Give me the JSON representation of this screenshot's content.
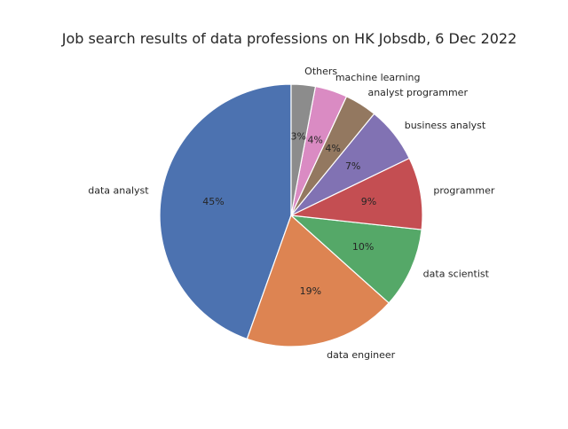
{
  "chart_data": {
    "type": "pie",
    "title": "Job search results of data professions on HK Jobsdb, 6 Dec 2022",
    "categories": [
      "data analyst",
      "data engineer",
      "data scientist",
      "programmer",
      "business analyst",
      "analyst programmer",
      "machine learning",
      "Others"
    ],
    "values": [
      45,
      19,
      10,
      9,
      7,
      4,
      4,
      3
    ],
    "value_labels": [
      "45%",
      "19%",
      "10%",
      "9%",
      "7%",
      "4%",
      "4%",
      "3%"
    ],
    "colors": [
      "#4c72b0",
      "#dd8452",
      "#55a868",
      "#c44e52",
      "#8172b3",
      "#937860",
      "#da8bc3",
      "#8c8c8c"
    ],
    "start_angle_deg": 90,
    "direction": "counterclockwise",
    "edge_color": "#ffffff",
    "legend": "none"
  }
}
